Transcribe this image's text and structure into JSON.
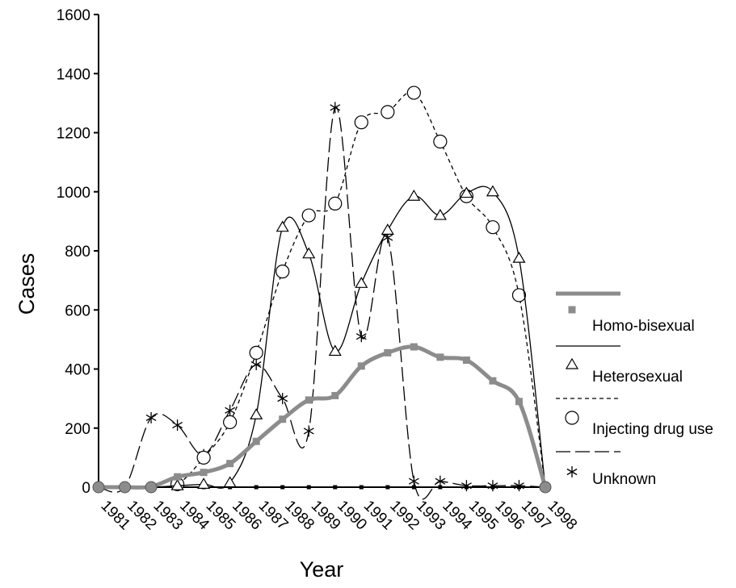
{
  "chart_data": {
    "type": "line",
    "xlabel": "Year",
    "ylabel": "Cases",
    "ylim": [
      0,
      1600
    ],
    "yticks": [
      0,
      200,
      400,
      600,
      800,
      1000,
      1200,
      1400,
      1600
    ],
    "categories": [
      "1981",
      "1982",
      "1983",
      "1984",
      "1985",
      "1986",
      "1987",
      "1988",
      "1989",
      "1990",
      "1991",
      "1992",
      "1993",
      "1994",
      "1995",
      "1996",
      "1997",
      "1998"
    ],
    "grid": false,
    "legend_position": "right",
    "series": [
      {
        "name": "Homo-bisexual",
        "marker": "square",
        "color": "#8c8c8c",
        "x": [
          1981,
          1982,
          1983,
          1984,
          1985,
          1986,
          1987,
          1988,
          1989,
          1990,
          1991,
          1992,
          1993,
          1994,
          1995,
          1996,
          1997,
          1998
        ],
        "values": [
          0,
          0,
          2,
          35,
          50,
          80,
          155,
          230,
          295,
          310,
          410,
          455,
          475,
          440,
          430,
          360,
          290,
          0
        ]
      },
      {
        "name": "Heterosexual",
        "marker": "triangle",
        "color": "#000000",
        "x": [
          1981,
          1982,
          1983,
          1984,
          1985,
          1986,
          1987,
          1988,
          1989,
          1990,
          1991,
          1992,
          1993,
          1994,
          1995,
          1996,
          1997,
          1998
        ],
        "values": [
          0,
          0,
          0,
          5,
          10,
          15,
          245,
          880,
          790,
          460,
          690,
          870,
          985,
          920,
          995,
          1000,
          775,
          0
        ]
      },
      {
        "name": "Injecting drug use",
        "marker": "circle",
        "color": "#000000",
        "x": [
          1981,
          1982,
          1983,
          1984,
          1985,
          1986,
          1987,
          1988,
          1989,
          1990,
          1991,
          1992,
          1993,
          1994,
          1995,
          1996,
          1997,
          1998
        ],
        "values": [
          0,
          0,
          0,
          10,
          100,
          220,
          455,
          730,
          920,
          960,
          1235,
          1270,
          1335,
          1170,
          985,
          880,
          650,
          0
        ]
      },
      {
        "name": "Unknown",
        "marker": "asterisk",
        "color": "#000000",
        "x": [
          1981,
          1982,
          1983,
          1984,
          1985,
          1986,
          1987,
          1988,
          1989,
          1990,
          1991,
          1992,
          1993,
          1994,
          1995,
          1996,
          1997,
          1998
        ],
        "values": [
          0,
          0,
          235,
          210,
          110,
          260,
          415,
          300,
          190,
          1285,
          510,
          845,
          20,
          20,
          5,
          5,
          5,
          0
        ]
      }
    ]
  }
}
